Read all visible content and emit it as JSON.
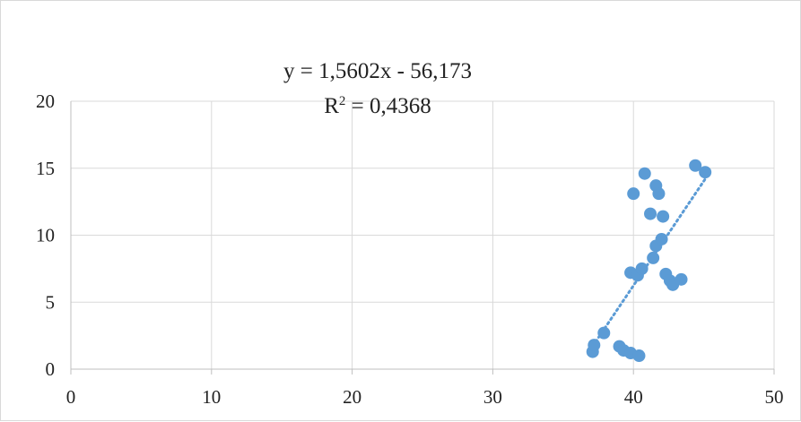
{
  "chart_data": {
    "type": "scatter",
    "title": "",
    "xlabel": "",
    "ylabel": "",
    "xlim": [
      0,
      50
    ],
    "ylim": [
      0,
      20
    ],
    "x_ticks": [
      "0",
      "10",
      "20",
      "30",
      "40",
      "50"
    ],
    "y_ticks": [
      "0",
      "5",
      "10",
      "15",
      "20"
    ],
    "grid": true,
    "legend": "none",
    "marker_color": "#5B9BD5",
    "trendline": {
      "type": "linear",
      "style": "dotted",
      "color": "#5B9BD5",
      "slope": 1.5602,
      "intercept": -56.173,
      "equation": "y = 1,5602x - 56,173",
      "r_squared_label": "R",
      "r_squared_sup": "2",
      "r_squared_value": " = 0,4368"
    },
    "series": [
      {
        "points": [
          [
            37.1,
            1.3
          ],
          [
            37.2,
            1.8
          ],
          [
            37.9,
            2.7
          ],
          [
            39.0,
            1.7
          ],
          [
            39.3,
            1.4
          ],
          [
            39.8,
            1.2
          ],
          [
            40.4,
            1.0
          ],
          [
            39.8,
            7.2
          ],
          [
            40.3,
            7.0
          ],
          [
            40.6,
            7.5
          ],
          [
            40.0,
            13.1
          ],
          [
            40.8,
            14.6
          ],
          [
            41.2,
            11.6
          ],
          [
            41.4,
            8.3
          ],
          [
            41.6,
            9.2
          ],
          [
            41.6,
            13.7
          ],
          [
            41.8,
            13.1
          ],
          [
            42.0,
            9.7
          ],
          [
            42.1,
            11.4
          ],
          [
            42.3,
            7.1
          ],
          [
            42.6,
            6.6
          ],
          [
            42.8,
            6.3
          ],
          [
            43.4,
            6.7
          ],
          [
            44.4,
            15.2
          ],
          [
            45.1,
            14.7
          ]
        ]
      }
    ]
  }
}
